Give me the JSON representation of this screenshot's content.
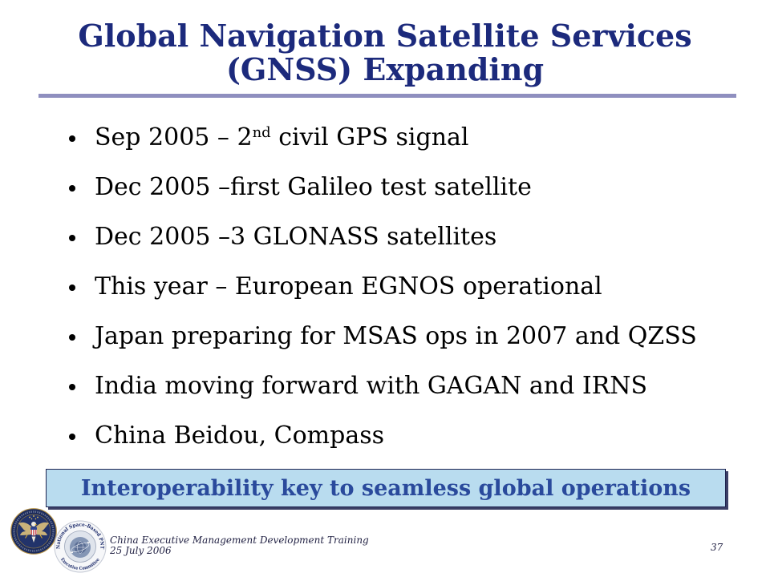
{
  "slide": {
    "title": {
      "line1": "Global Navigation Satellite Services",
      "line2": "(GNSS) Expanding"
    },
    "bullets": [
      {
        "before": "Sep 2005 – 2",
        "sup": "nd",
        "after": " civil GPS signal"
      },
      {
        "text": "Dec 2005 –first Galileo test satellite"
      },
      {
        "text": "Dec 2005 –3 GLONASS satellites"
      },
      {
        "text": "This year – European EGNOS operational"
      },
      {
        "text": "Japan preparing for MSAS ops in 2007 and QZSS"
      },
      {
        "text": "India moving forward with GAGAN and IRNS"
      },
      {
        "text": "China Beidou, Compass"
      }
    ],
    "callout": {
      "text": "Interoperability key to seamless global operations"
    },
    "footer": {
      "course": "China Executive Management Development Training",
      "date": "25 July 2006",
      "page_number": "37"
    },
    "logos": {
      "left_seal": {
        "icon": "eagle-seal-icon"
      },
      "right_seal": {
        "icon": "pnt-executive-committee-seal-icon",
        "lettering_top": "National Space-Based PNT",
        "lettering_bottom": "Executive Committee"
      }
    }
  },
  "colors": {
    "title": "#1c2a7c",
    "divider": "#8f8fbf",
    "bullet_text": "#000000",
    "callout_fill": "#b9dcef",
    "callout_text": "#2a4a9c",
    "footer_text": "#222244"
  }
}
